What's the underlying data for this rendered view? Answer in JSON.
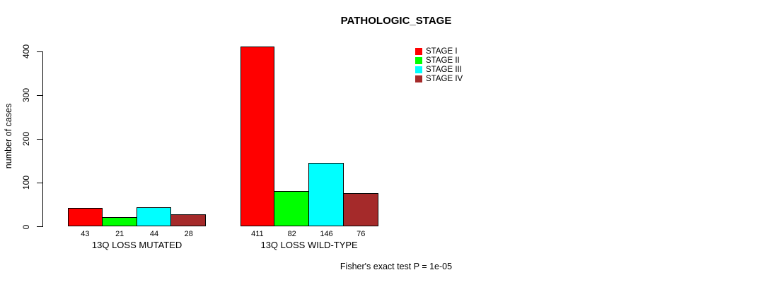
{
  "chart_data": {
    "type": "bar",
    "title": "PATHOLOGIC_STAGE",
    "ylabel": "number of cases",
    "xlabel": "",
    "ylim": [
      0,
      400
    ],
    "yticks": [
      0,
      100,
      200,
      300,
      400
    ],
    "grid": false,
    "legend_position": "top-right-inside",
    "categories": [
      "13Q LOSS MUTATED",
      "13Q LOSS WILD-TYPE"
    ],
    "series": [
      {
        "name": "STAGE I",
        "color": "#ff0000",
        "values": [
          43,
          411
        ]
      },
      {
        "name": "STAGE II",
        "color": "#00ff00",
        "values": [
          21,
          82
        ]
      },
      {
        "name": "STAGE III",
        "color": "#00ffff",
        "values": [
          44,
          146
        ]
      },
      {
        "name": "STAGE IV",
        "color": "#a52a2a",
        "values": [
          28,
          76
        ]
      }
    ],
    "bar_value_labels_shown": true,
    "annotation": "Fisher's exact test P = 1e-05"
  }
}
